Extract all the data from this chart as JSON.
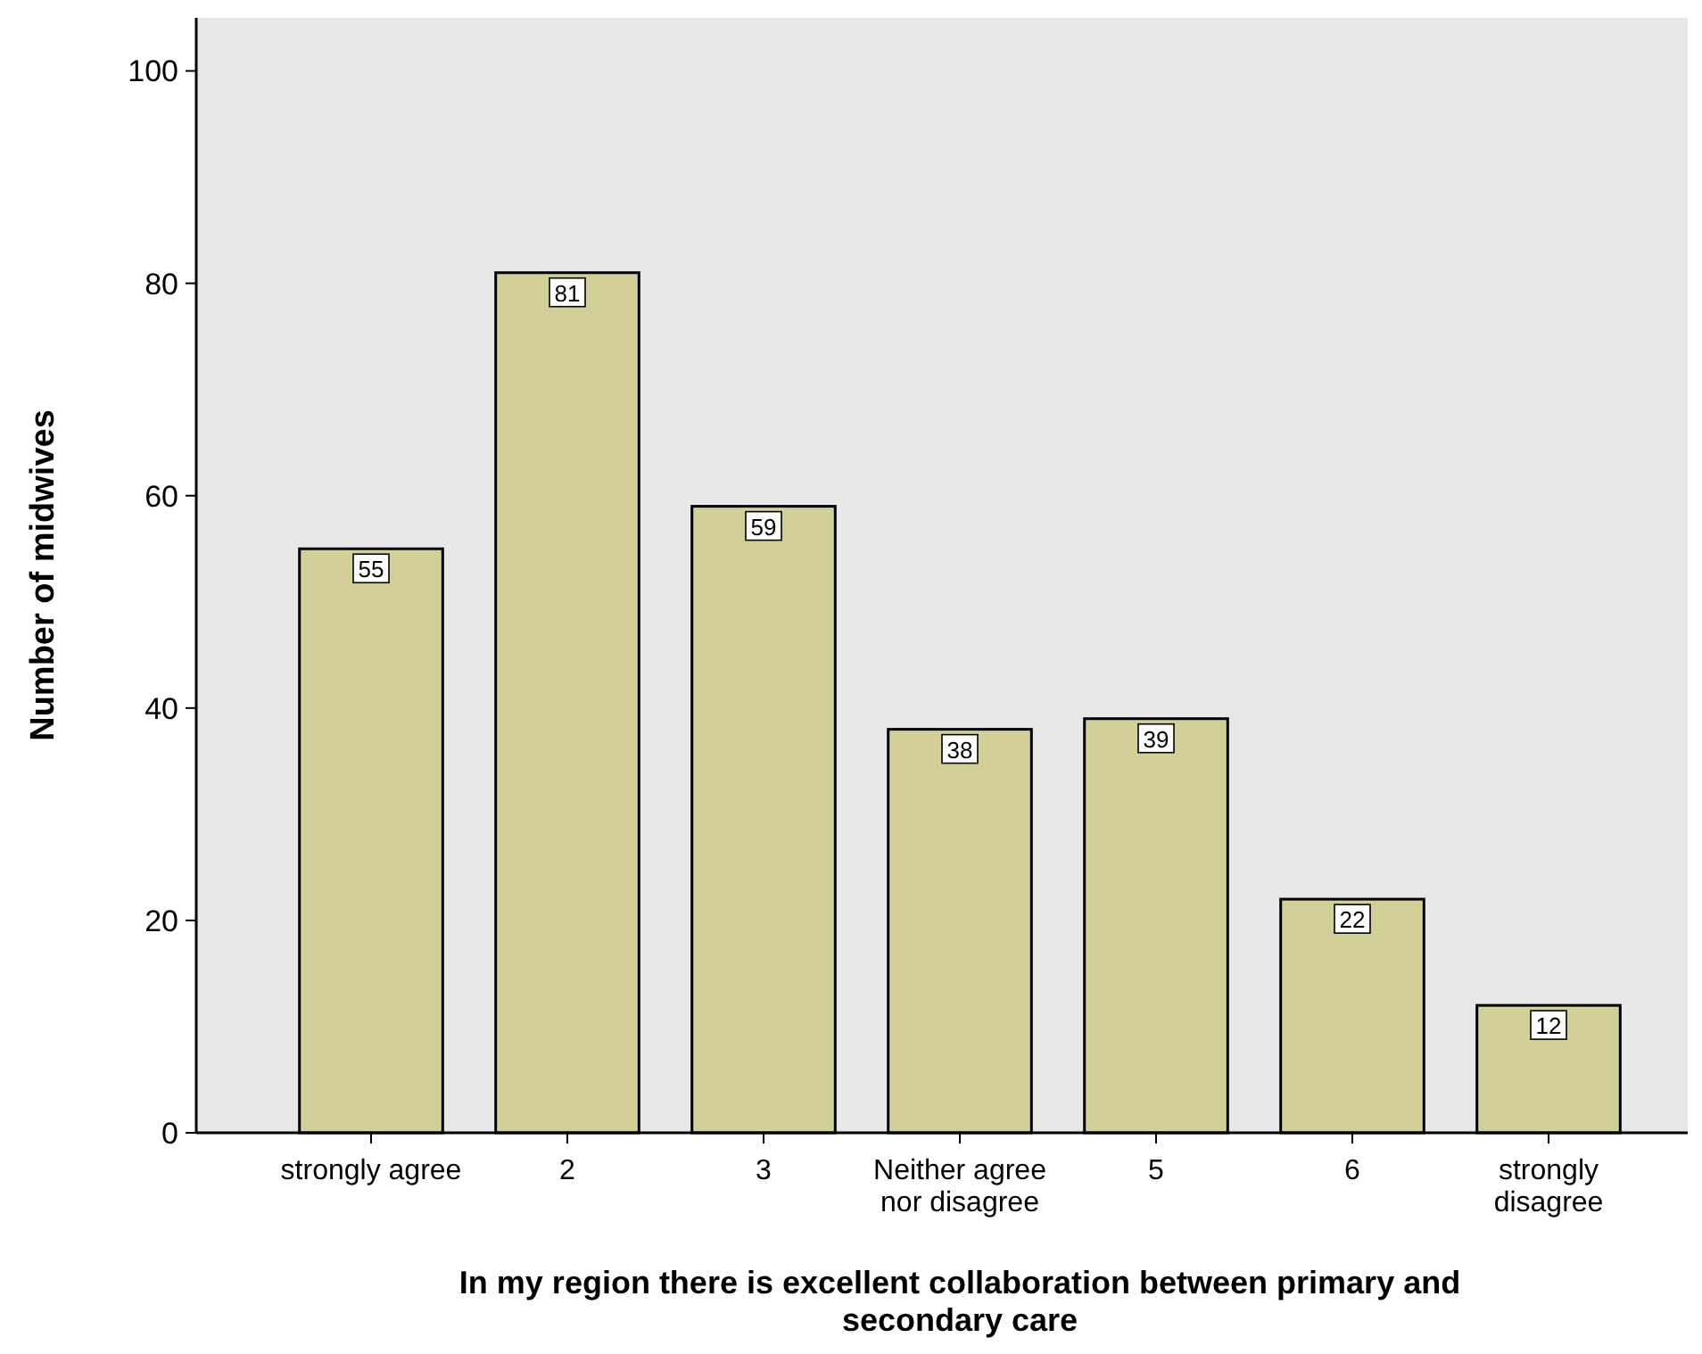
{
  "chart_data": {
    "type": "bar",
    "xlabel": "In my region there is excellent collaboration between primary and secondary care",
    "ylabel": "Number of midwives",
    "categories": [
      "strongly agree",
      "2",
      "3",
      "Neither agree nor disagree",
      "5",
      "6",
      "strongly disagree"
    ],
    "values": [
      55,
      81,
      59,
      38,
      39,
      22,
      12
    ],
    "color": "#d3cf98",
    "ylim": [
      0,
      105
    ],
    "yticks": [
      0,
      20,
      40,
      60,
      80,
      100
    ],
    "grid": false,
    "data_labels": true
  }
}
